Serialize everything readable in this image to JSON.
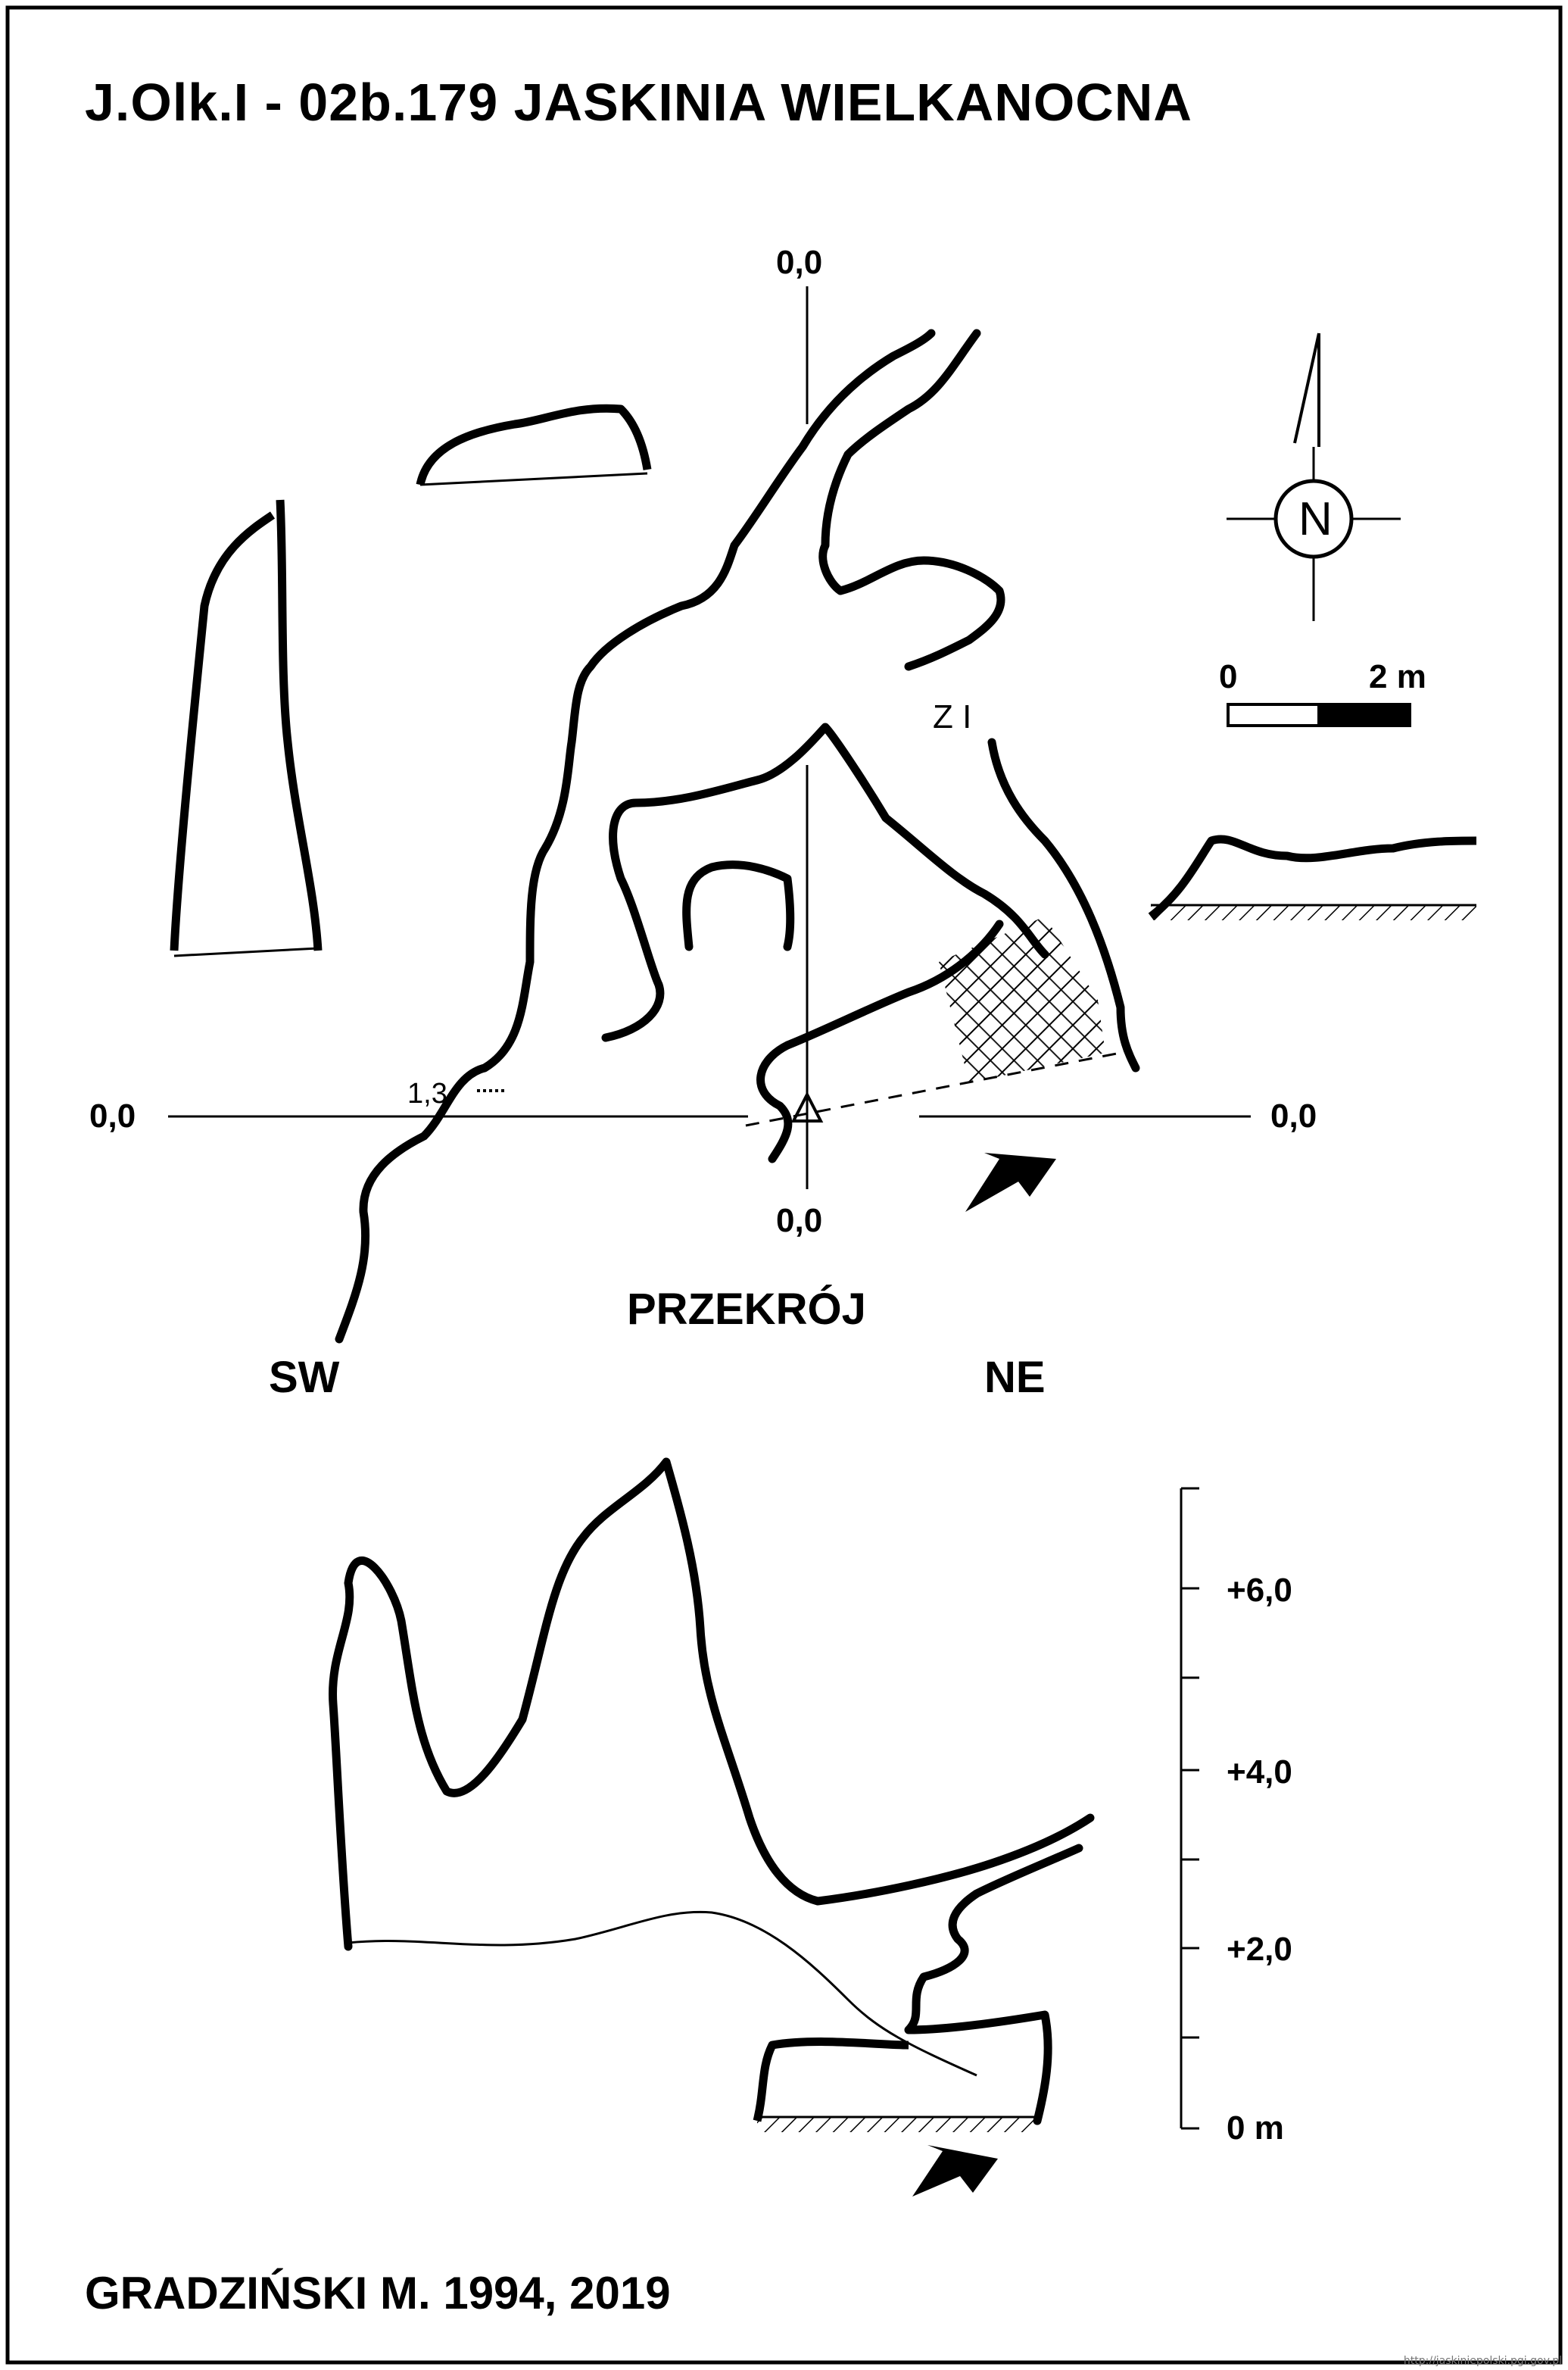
{
  "title": "J.Olk.I - 02b.179  JASKINIA WIELKANOCNA",
  "plan": {
    "axis_labels": {
      "top": "0,0",
      "bottom": "0,0",
      "left": "0,0",
      "right": "0,0"
    },
    "north_label": "N",
    "scale_start": "0",
    "scale_end": "2 m",
    "zone_label": "Z I",
    "depth_label": "1,3"
  },
  "section": {
    "title": "PRZEKRÓJ",
    "left_dir": "SW",
    "right_dir": "NE",
    "scale_ticks": [
      "+6,0",
      "+4,0",
      "+2,0",
      "0 m"
    ]
  },
  "author": "GRADZIŃSKI M. 1994, 2019",
  "source_url": "http://jaskiniepolski.pgi.gov.pl"
}
